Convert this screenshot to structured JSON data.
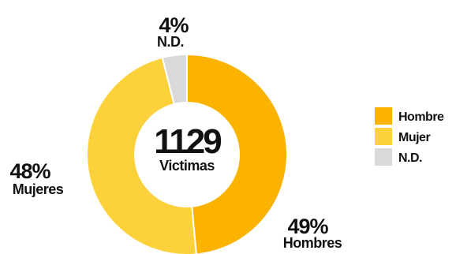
{
  "chart_data": {
    "type": "pie",
    "center": {
      "value": "1129",
      "label": "Victimas"
    },
    "slices": [
      {
        "name": "Hombre",
        "value": 49,
        "percent_label": "49%",
        "label": "Hombres",
        "color": "#fbb300"
      },
      {
        "name": "Mujer",
        "value": 48,
        "percent_label": "48%",
        "label": "Mujeres",
        "color": "#fdd13a"
      },
      {
        "name": "N.D.",
        "value": 4,
        "percent_label": "4%",
        "label": "N.D.",
        "color": "#d9d9d9"
      }
    ],
    "legend": {
      "placement": "right",
      "items": [
        "Hombre",
        "Mujer",
        "N.D."
      ]
    }
  }
}
